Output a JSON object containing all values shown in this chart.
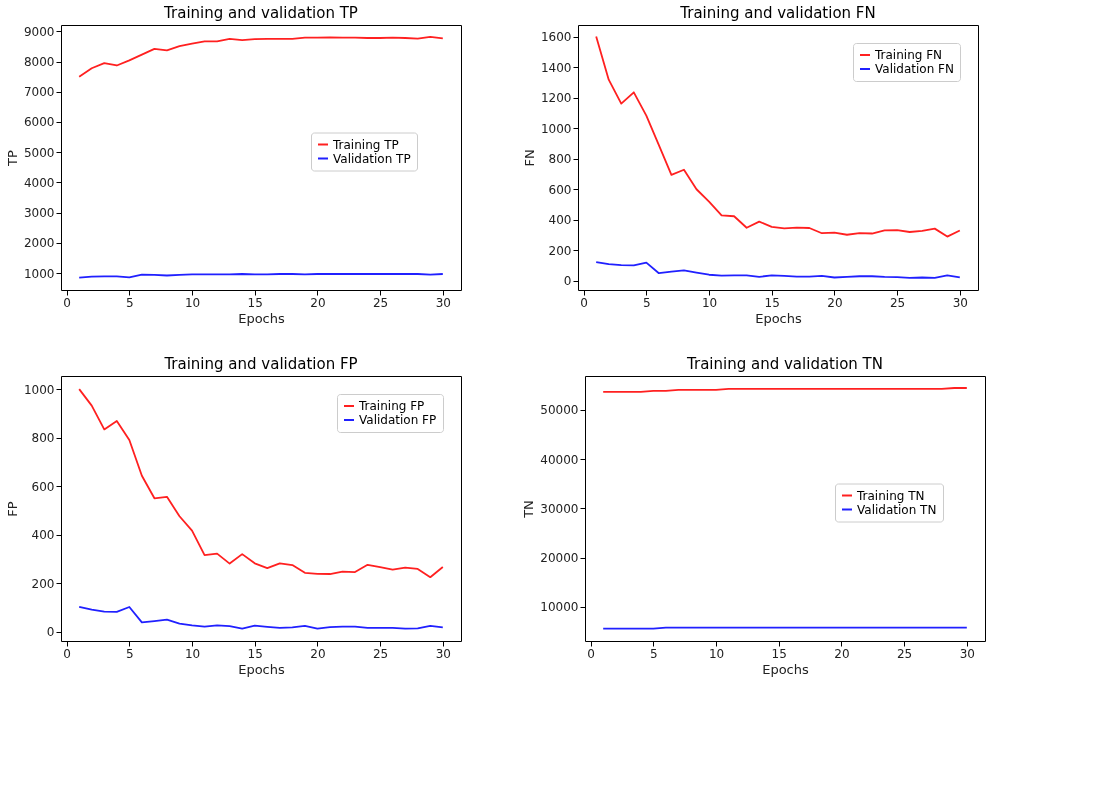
{
  "chart_data": [
    {
      "type": "line",
      "title": "Training and validation TP",
      "xlabel": "Epochs",
      "ylabel": "TP",
      "x": [
        1,
        2,
        3,
        4,
        5,
        6,
        7,
        8,
        9,
        10,
        11,
        12,
        13,
        14,
        15,
        16,
        17,
        18,
        19,
        20,
        21,
        22,
        23,
        24,
        25,
        26,
        27,
        28,
        29,
        30
      ],
      "xlim": [
        -0.45,
        31.45
      ],
      "xticks": [
        0,
        5,
        10,
        15,
        20,
        25,
        30
      ],
      "ylim": [
        440,
        9210
      ],
      "yticks": [
        1000,
        2000,
        3000,
        4000,
        5000,
        6000,
        7000,
        8000,
        9000
      ],
      "legend": "right",
      "series": [
        {
          "name": "Training TP",
          "color": "#ff2020",
          "values": [
            7500,
            7780,
            7950,
            7870,
            8040,
            8230,
            8420,
            8370,
            8510,
            8590,
            8670,
            8670,
            8750,
            8710,
            8740,
            8750,
            8750,
            8750,
            8790,
            8790,
            8800,
            8790,
            8790,
            8780,
            8780,
            8790,
            8780,
            8760,
            8820,
            8770
          ]
        },
        {
          "name": "Validation TP",
          "color": "#2020ff",
          "values": [
            850,
            880,
            890,
            890,
            860,
            950,
            940,
            920,
            940,
            960,
            960,
            960,
            960,
            970,
            960,
            960,
            970,
            970,
            960,
            970,
            970,
            970,
            970,
            970,
            970,
            970,
            970,
            970,
            950,
            970
          ]
        }
      ]
    },
    {
      "type": "line",
      "title": "Training and validation FN",
      "xlabel": "Epochs",
      "ylabel": "FN",
      "x": [
        1,
        2,
        3,
        4,
        5,
        6,
        7,
        8,
        9,
        10,
        11,
        12,
        13,
        14,
        15,
        16,
        17,
        18,
        19,
        20,
        21,
        22,
        23,
        24,
        25,
        26,
        27,
        28,
        29,
        30
      ],
      "xlim": [
        -0.45,
        31.45
      ],
      "xticks": [
        0,
        5,
        10,
        15,
        20,
        25,
        30
      ],
      "ylim": [
        -60,
        1676
      ],
      "yticks": [
        0,
        200,
        400,
        600,
        800,
        1000,
        1200,
        1400,
        1600
      ],
      "legend": "top right",
      "series": [
        {
          "name": "Training FN",
          "color": "#ff2020",
          "values": [
            1600,
            1318,
            1161,
            1235,
            1082,
            889,
            694,
            728,
            600,
            519,
            429,
            423,
            348,
            388,
            354,
            344,
            348,
            346,
            312,
            316,
            302,
            312,
            310,
            330,
            332,
            320,
            328,
            342,
            290,
            330
          ]
        },
        {
          "name": "Validation FN",
          "color": "#2020ff",
          "values": [
            123,
            109,
            103,
            101,
            119,
            50,
            60,
            68,
            54,
            40,
            34,
            36,
            36,
            26,
            36,
            32,
            28,
            28,
            32,
            22,
            26,
            30,
            30,
            26,
            24,
            20,
            22,
            20,
            36,
            22
          ]
        }
      ]
    },
    {
      "type": "line",
      "title": "Training and validation FP",
      "xlabel": "Epochs",
      "ylabel": "FP",
      "x": [
        1,
        2,
        3,
        4,
        5,
        6,
        7,
        8,
        9,
        10,
        11,
        12,
        13,
        14,
        15,
        16,
        17,
        18,
        19,
        20,
        21,
        22,
        23,
        24,
        25,
        26,
        27,
        28,
        29,
        30
      ],
      "xlim": [
        -0.45,
        31.45
      ],
      "xticks": [
        0,
        5,
        10,
        15,
        20,
        25,
        30
      ],
      "ylim": [
        -38,
        1054
      ],
      "yticks": [
        0,
        200,
        400,
        600,
        800,
        1000
      ],
      "legend": "top right",
      "series": [
        {
          "name": "Training FP",
          "color": "#ff2020",
          "values": [
            1000,
            932,
            834,
            869,
            790,
            643,
            550,
            556,
            476,
            417,
            316,
            322,
            281,
            320,
            282,
            262,
            282,
            275,
            243,
            239,
            238,
            248,
            246,
            276,
            266,
            256,
            264,
            259,
            225,
            267
          ]
        },
        {
          "name": "Validation FP",
          "color": "#2020ff",
          "values": [
            103,
            91,
            83,
            82,
            102,
            39,
            44,
            50,
            34,
            26,
            21,
            26,
            23,
            13,
            25,
            20,
            16,
            18,
            24,
            13,
            19,
            21,
            21,
            16,
            16,
            16,
            13,
            14,
            24,
            18
          ]
        }
      ]
    },
    {
      "type": "line",
      "title": "Training and validation TN",
      "xlabel": "Epochs",
      "ylabel": "TN",
      "x": [
        1,
        2,
        3,
        4,
        5,
        6,
        7,
        8,
        9,
        10,
        11,
        12,
        13,
        14,
        15,
        16,
        17,
        18,
        19,
        20,
        21,
        22,
        23,
        24,
        25,
        26,
        27,
        28,
        29,
        30
      ],
      "xlim": [
        -0.45,
        31.45
      ],
      "xticks": [
        0,
        5,
        10,
        15,
        20,
        25,
        30
      ],
      "ylim": [
        3100,
        56830
      ],
      "yticks": [
        10000,
        20000,
        30000,
        40000,
        50000
      ],
      "legend": "right",
      "series": [
        {
          "name": "Training TN",
          "color": "#ff2020",
          "values": [
            53600,
            53600,
            53600,
            53600,
            53800,
            53800,
            54000,
            54000,
            54000,
            54000,
            54200,
            54200,
            54200,
            54200,
            54200,
            54200,
            54200,
            54200,
            54200,
            54200,
            54200,
            54200,
            54200,
            54200,
            54200,
            54200,
            54200,
            54200,
            54400,
            54400
          ]
        },
        {
          "name": "Validation TN",
          "color": "#2020ff",
          "values": [
            5600,
            5600,
            5600,
            5600,
            5600,
            5800,
            5800,
            5800,
            5800,
            5800,
            5800,
            5800,
            5800,
            5800,
            5800,
            5800,
            5800,
            5800,
            5800,
            5800,
            5800,
            5800,
            5800,
            5800,
            5800,
            5800,
            5800,
            5800,
            5800,
            5800
          ]
        }
      ]
    }
  ]
}
